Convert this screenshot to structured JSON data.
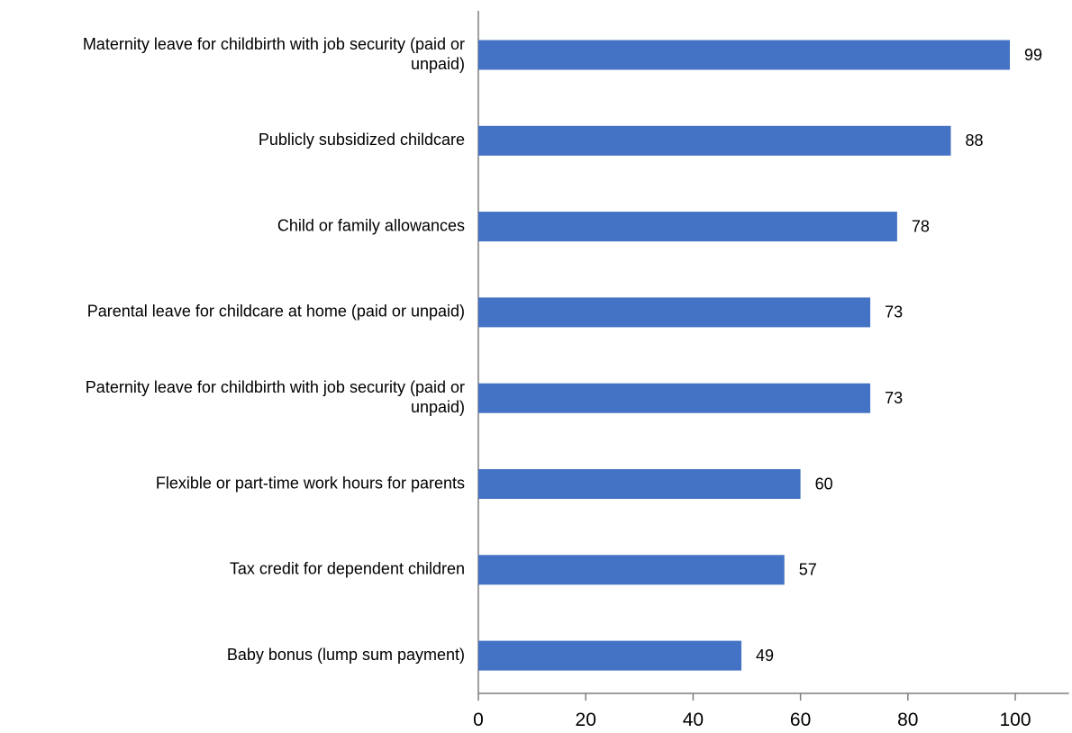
{
  "chart_data": {
    "type": "bar",
    "orientation": "horizontal",
    "title": "",
    "xlabel": "",
    "ylabel": "",
    "categories": [
      "Maternity leave for childbirth with job security (paid or unpaid)",
      "Publicly subsidized childcare",
      "Child or family allowances",
      "Parental leave for childcare at home (paid or unpaid)",
      "Paternity leave for childbirth with job security (paid or unpaid)",
      "Flexible or part-time work hours for parents",
      "Tax credit for dependent children",
      "Baby bonus (lump sum payment)"
    ],
    "category_label_lines": [
      [
        "Maternity leave for childbirth with job security (paid or",
        "unpaid)"
      ],
      [
        "Publicly subsidized childcare"
      ],
      [
        "Child or family allowances"
      ],
      [
        "Parental leave for childcare at home (paid or unpaid)"
      ],
      [
        "Paternity leave for childbirth with job security (paid or",
        "unpaid)"
      ],
      [
        "Flexible or part-time work hours for parents"
      ],
      [
        "Tax credit for dependent children"
      ],
      [
        "Baby bonus (lump sum payment)"
      ]
    ],
    "values": [
      99,
      88,
      78,
      73,
      73,
      60,
      57,
      49
    ],
    "xlim": [
      0,
      110
    ],
    "xticks": [
      0,
      20,
      40,
      60,
      80,
      100
    ],
    "grid": false,
    "legend": "none",
    "data_labels": true,
    "bar_color": "#4472C4",
    "axis_color": "#7f7f7f"
  }
}
